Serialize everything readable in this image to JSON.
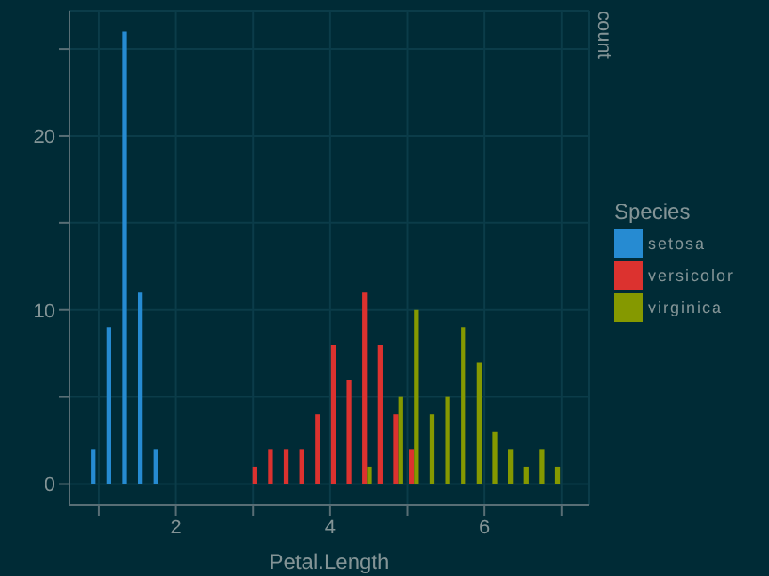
{
  "chart_data": {
    "type": "histogram",
    "xlabel": "Petal.Length",
    "ylabel": "count",
    "legend_title": "Species",
    "legend": "right",
    "grid": true,
    "bins": [
      0.898,
      1.101,
      1.305,
      1.508,
      1.712,
      1.915,
      2.119,
      2.322,
      2.526,
      2.729,
      2.933,
      3.136,
      3.339,
      3.543,
      3.746,
      3.95,
      4.153,
      4.357,
      4.56,
      4.764,
      4.967,
      5.17,
      5.374,
      5.577,
      5.781,
      5.984,
      6.188,
      6.391,
      6.595,
      6.798,
      7.002
    ],
    "series": [
      {
        "name": "setosa",
        "color": "#268bd2",
        "values": [
          2,
          9,
          26,
          11,
          2,
          0,
          0,
          0,
          0,
          0,
          0,
          0,
          0,
          0,
          0,
          0,
          0,
          0,
          0,
          0,
          0,
          0,
          0,
          0,
          0,
          0,
          0,
          0,
          0,
          0
        ]
      },
      {
        "name": "versicolor",
        "color": "#dc322f",
        "values": [
          0,
          0,
          0,
          0,
          0,
          0,
          0,
          0,
          0,
          0,
          1,
          2,
          2,
          2,
          4,
          8,
          6,
          11,
          8,
          4,
          2,
          0,
          0,
          0,
          0,
          0,
          0,
          0,
          0,
          0
        ]
      },
      {
        "name": "virginica",
        "color": "#859900",
        "values": [
          0,
          0,
          0,
          0,
          0,
          0,
          0,
          0,
          0,
          0,
          0,
          0,
          0,
          0,
          0,
          0,
          0,
          1,
          0,
          5,
          10,
          4,
          5,
          9,
          7,
          3,
          2,
          1,
          2,
          1
        ]
      }
    ],
    "xlim": [
      0.62,
      7.36
    ],
    "xticks": [
      {
        "value": 1,
        "label": null
      },
      2,
      {
        "value": 3,
        "label": null
      },
      4,
      {
        "value": 5,
        "label": null
      },
      6,
      {
        "value": 7,
        "label": null
      }
    ],
    "ylim": [
      -1.2,
      27.2
    ],
    "yticks": [
      0,
      {
        "value": 5,
        "label": null
      },
      10,
      {
        "value": 15,
        "label": null
      },
      20,
      {
        "value": 25,
        "label": null
      }
    ]
  }
}
